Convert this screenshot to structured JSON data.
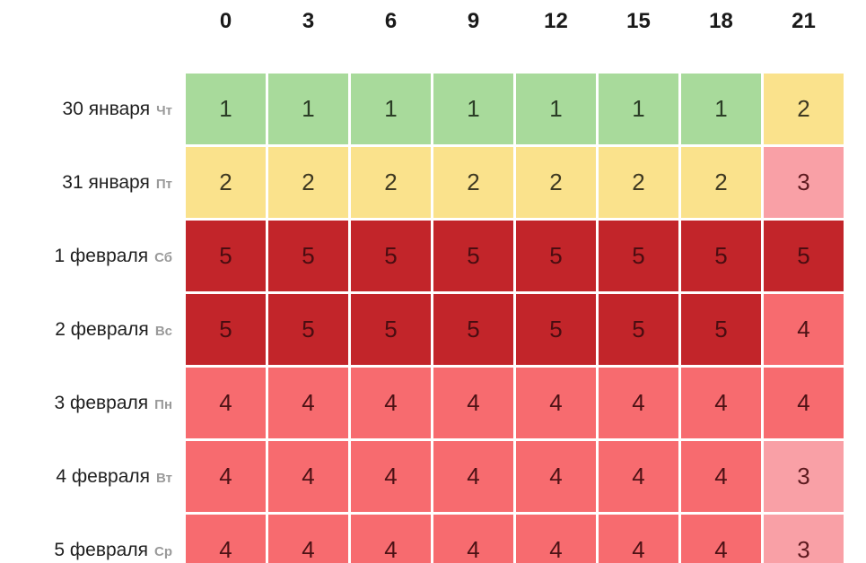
{
  "chart_data": {
    "type": "heatmap",
    "title": "",
    "x": [
      "0",
      "3",
      "6",
      "9",
      "12",
      "15",
      "18",
      "21"
    ],
    "rows": [
      {
        "date": "30 января",
        "weekday": "Чт",
        "values": [
          1,
          1,
          1,
          1,
          1,
          1,
          1,
          2
        ]
      },
      {
        "date": "31 января",
        "weekday": "Пт",
        "values": [
          2,
          2,
          2,
          2,
          2,
          2,
          2,
          3
        ]
      },
      {
        "date": "1 февраля",
        "weekday": "Сб",
        "values": [
          5,
          5,
          5,
          5,
          5,
          5,
          5,
          5
        ]
      },
      {
        "date": "2 февраля",
        "weekday": "Вс",
        "values": [
          5,
          5,
          5,
          5,
          5,
          5,
          5,
          4
        ]
      },
      {
        "date": "3 февраля",
        "weekday": "Пн",
        "values": [
          4,
          4,
          4,
          4,
          4,
          4,
          4,
          4
        ]
      },
      {
        "date": "4 февраля",
        "weekday": "Вт",
        "values": [
          4,
          4,
          4,
          4,
          4,
          4,
          4,
          3
        ]
      },
      {
        "date": "5 февраля",
        "weekday": "Ср",
        "values": [
          4,
          4,
          4,
          4,
          4,
          4,
          4,
          3
        ]
      }
    ],
    "value_range": [
      1,
      5
    ],
    "legend": "none",
    "grid_gap_color": "#ffffff",
    "level_colors": {
      "1": {
        "bg": "#a8da9b",
        "fg": "#2b3d26"
      },
      "2": {
        "bg": "#fae28c",
        "fg": "#3e3922"
      },
      "3": {
        "bg": "#f9a0a6",
        "fg": "#5d1a1f"
      },
      "4": {
        "bg": "#f76b6f",
        "fg": "#4c1215"
      },
      "5": {
        "bg": "#c2252a",
        "fg": "#4a0d11"
      }
    },
    "text_colors": {
      "date": "#1f1f1f",
      "weekday": "#9a9a9a",
      "header": "#1a1a1a"
    }
  }
}
